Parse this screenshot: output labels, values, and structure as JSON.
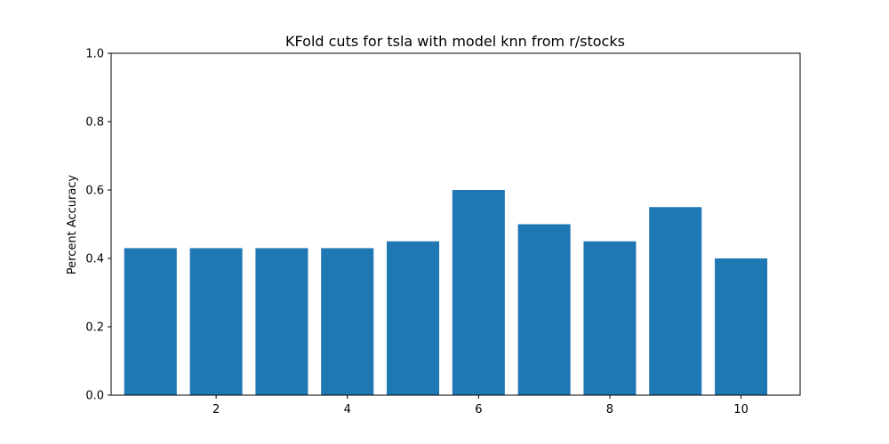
{
  "chart_data": {
    "type": "bar",
    "title": "KFold cuts for tsla with model knn from r/stocks",
    "xlabel": "",
    "ylabel": "Percent Accuracy",
    "x": [
      1,
      2,
      3,
      4,
      5,
      6,
      7,
      8,
      9,
      10
    ],
    "values": [
      0.43,
      0.43,
      0.43,
      0.43,
      0.45,
      0.6,
      0.5,
      0.45,
      0.55,
      0.4
    ],
    "xlim": [
      0.4,
      10.9
    ],
    "ylim": [
      0,
      1.0
    ],
    "xticks": [
      2,
      4,
      6,
      8,
      10
    ],
    "yticks": [
      0.0,
      0.2,
      0.4,
      0.6,
      0.8,
      1.0
    ],
    "ytick_labels": [
      "0.0",
      "0.2",
      "0.4",
      "0.6",
      "0.8",
      "1.0"
    ],
    "bar_color": "#1f77b4",
    "grid": false,
    "legend": "none"
  }
}
